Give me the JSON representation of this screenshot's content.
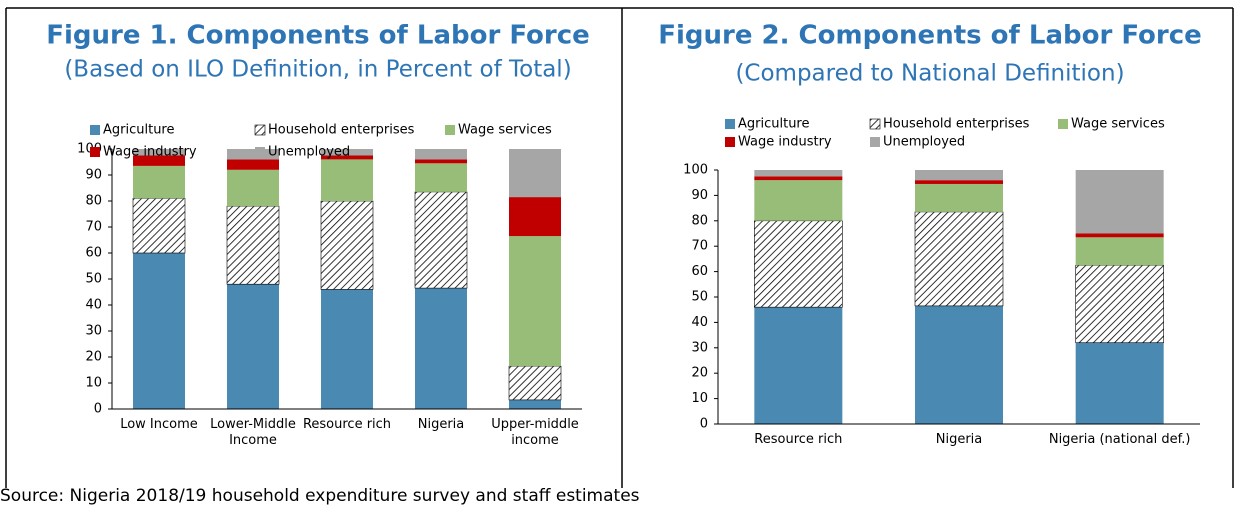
{
  "chart_data": [
    {
      "type": "stacked_bar",
      "title": "Figure 1. Components of Labor Force",
      "subtitle": "(Based on ILO Definition, in Percent of Total)",
      "categories": [
        "Low Income",
        "Lower-Middle Income",
        "Resource rich",
        "Nigeria",
        "Upper-middle income"
      ],
      "series": [
        {
          "name": "Agriculture",
          "color": "#4a89b2",
          "values": [
            60,
            48,
            46,
            46.5,
            3.5
          ]
        },
        {
          "name": "Household enterprises",
          "color": "#000000",
          "hatch": true,
          "values": [
            21,
            30,
            34,
            37,
            13
          ]
        },
        {
          "name": "Wage services",
          "color": "#98bd78",
          "values": [
            12.5,
            14,
            16,
            11,
            50
          ]
        },
        {
          "name": "Wage industry",
          "color": "#c00000",
          "values": [
            4,
            4,
            1.5,
            1.5,
            15
          ]
        },
        {
          "name": "Unemployed",
          "color": "#a6a6a6",
          "values": [
            2.5,
            4,
            2.5,
            4,
            18.5
          ]
        }
      ],
      "ylim": [
        0,
        100
      ],
      "yticks": [
        0,
        10,
        20,
        30,
        40,
        50,
        60,
        70,
        80,
        90,
        100
      ],
      "grid": false
    },
    {
      "type": "stacked_bar",
      "title": "Figure 2. Components of Labor Force",
      "subtitle": "(Compared to National Definition)",
      "categories": [
        "Resource rich",
        "Nigeria",
        "Nigeria (national def.)"
      ],
      "series": [
        {
          "name": "Agriculture",
          "color": "#4a89b2",
          "values": [
            46,
            46.5,
            32
          ]
        },
        {
          "name": "Household enterprises",
          "color": "#000000",
          "hatch": true,
          "values": [
            34,
            37,
            30.5
          ]
        },
        {
          "name": "Wage services",
          "color": "#98bd78",
          "values": [
            16,
            11,
            11
          ]
        },
        {
          "name": "Wage industry",
          "color": "#c00000",
          "values": [
            1.5,
            1.5,
            1.5
          ]
        },
        {
          "name": "Unemployed",
          "color": "#a6a6a6",
          "values": [
            2.5,
            4,
            25
          ]
        }
      ],
      "ylim": [
        0,
        100
      ],
      "yticks": [
        0,
        10,
        20,
        30,
        40,
        50,
        60,
        70,
        80,
        90,
        100
      ],
      "grid": false
    }
  ],
  "source": "Source: Nigeria 2018/19 household expenditure survey and staff estimates"
}
